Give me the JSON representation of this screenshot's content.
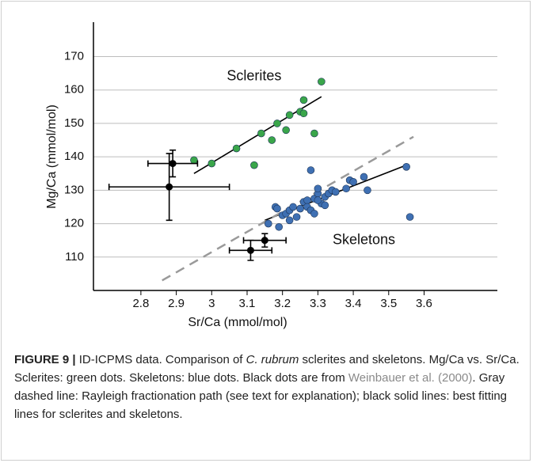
{
  "chart_data": {
    "type": "scatter",
    "x_label": "Sr/Ca (mmol/mol)",
    "y_label": "Mg/Ca (mmol/mol)",
    "xlim": [
      2.666,
      3.807
    ],
    "ylim": [
      100,
      180.3
    ],
    "xticks": [
      2.8,
      2.9,
      3.0,
      3.1,
      3.2,
      3.3,
      3.4,
      3.5,
      3.6
    ],
    "yticks": [
      110,
      120,
      130,
      140,
      150,
      160,
      170
    ],
    "grid": true,
    "series": [
      {
        "color": "#3aa64a",
        "x": [
          2.95,
          3.0,
          3.07,
          3.12,
          3.14,
          3.17,
          3.185,
          3.21,
          3.22,
          3.25,
          3.26,
          3.29,
          3.26,
          3.31
        ],
        "values": [
          139,
          138,
          142.5,
          137.5,
          147,
          145,
          150,
          148,
          152.5,
          153.5,
          153,
          147,
          157,
          162.5
        ]
      },
      {
        "color": "#3f70b3",
        "x": [
          3.16,
          3.18,
          3.19,
          3.2,
          3.21,
          3.22,
          3.22,
          3.23,
          3.24,
          3.25,
          3.26,
          3.27,
          3.27,
          3.28,
          3.29,
          3.29,
          3.3,
          3.3,
          3.31,
          3.32,
          3.32,
          3.33,
          3.34,
          3.35,
          3.38,
          3.39,
          3.4,
          3.43,
          3.44,
          3.28,
          3.55,
          3.56,
          3.185,
          3.3
        ],
        "values": [
          120,
          125,
          119,
          122.5,
          123,
          121,
          124,
          125,
          122,
          124.5,
          126.5,
          127,
          125,
          124,
          123,
          127.5,
          129,
          130.5,
          126,
          128,
          125.5,
          129,
          130,
          129.5,
          130.5,
          133,
          132.5,
          134,
          130,
          136,
          137,
          122,
          124.5,
          127
        ]
      }
    ],
    "error_points": {
      "color": "#000000",
      "x": [
        2.89,
        2.88,
        3.15,
        3.11
      ],
      "y": [
        138,
        131,
        115,
        112
      ],
      "xerr": [
        0.07,
        0.17,
        0.06,
        0.06
      ],
      "yerr": [
        4,
        10,
        2,
        3
      ]
    },
    "fit_lines": [
      {
        "color": "#000000",
        "x": [
          2.95,
          3.31
        ],
        "y": [
          135,
          158
        ]
      },
      {
        "color": "#000000",
        "x": [
          3.15,
          3.55
        ],
        "y": [
          121,
          137.5
        ]
      },
      {
        "color": "#9a9a9a",
        "dashed": true,
        "x": [
          2.86,
          3.57
        ],
        "y": [
          103,
          146
        ]
      }
    ],
    "annotations": [
      {
        "text": "Sclerites",
        "x": 3.12,
        "y": 164
      },
      {
        "text": "Skeletons",
        "x": 3.43,
        "y": 115
      }
    ]
  },
  "caption": {
    "label": "FIGURE 9 |",
    "parts": [
      "ID-ICPMS data. Comparison of ",
      "C. rubrum",
      " sclerites and skeletons. Mg/Ca vs. Sr/Ca. Sclerites: green dots. Skeletons: blue dots. Black dots are from ",
      "Weinbauer et al. (2000)",
      ". Gray dashed line: Rayleigh fractionation path (see text for explanation); black solid lines: best fitting lines for sclerites and skeletons."
    ]
  }
}
